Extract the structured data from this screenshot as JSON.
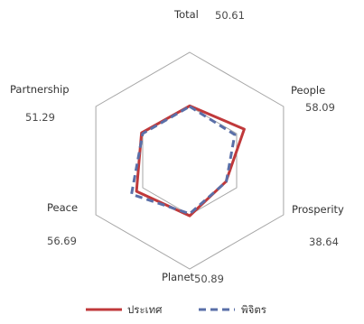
{
  "chart_data": {
    "type": "radar",
    "title": "",
    "axes": [
      {
        "key": "total",
        "label": "Total",
        "value_label": "50.61"
      },
      {
        "key": "people",
        "label": "People",
        "value_label": "58.09"
      },
      {
        "key": "prosperity",
        "label": "Prosperity",
        "value_label": "38.64"
      },
      {
        "key": "planet",
        "label": "Planet",
        "value_label": "50.89"
      },
      {
        "key": "peace",
        "label": "Peace",
        "value_label": "56.69"
      },
      {
        "key": "partnership",
        "label": "Partnership",
        "value_label": "51.29"
      }
    ],
    "range": [
      0,
      100
    ],
    "rings": [
      50,
      100
    ],
    "series": [
      {
        "name": "ประเทศ",
        "color": "#c0393b",
        "dash": "solid",
        "values": [
          50.61,
          58.09,
          38.64,
          50.89,
          56.69,
          51.29
        ]
      },
      {
        "name": "พิจิตร",
        "color": "#5a6fa8",
        "dash": "dashed",
        "values": [
          50,
          48,
          39,
          49,
          62,
          50
        ]
      }
    ],
    "legend_position": "bottom",
    "grid": true
  },
  "colors": {
    "grid": "#a6a6a6",
    "text": "#333333"
  }
}
